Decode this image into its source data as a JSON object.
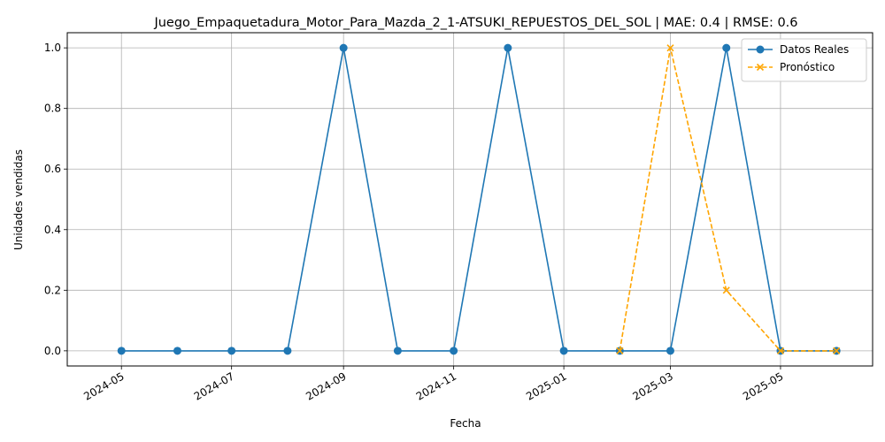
{
  "chart_data": {
    "type": "line",
    "title": "Juego_Empaquetadura_Motor_Para_Mazda_2_1-ATSUKI_REPUESTOS_DEL_SOL | MAE: 0.4 | RMSE: 0.6",
    "xlabel": "Fecha",
    "ylabel": "Unidades vendidas",
    "x_ticks": [
      "2024-05",
      "2024-07",
      "2024-09",
      "2024-11",
      "2025-01",
      "2025-03",
      "2025-05"
    ],
    "y_ticks": [
      "0.0",
      "0.2",
      "0.4",
      "0.6",
      "0.8",
      "1.0"
    ],
    "ylim": [
      -0.05,
      1.05
    ],
    "xlim": [
      "2024-04-01",
      "2025-06-21"
    ],
    "grid": true,
    "legend_position": "top-right",
    "series": [
      {
        "name": "Datos Reales",
        "color": "#1f77b4",
        "line_style": "solid",
        "marker": "circle",
        "x": [
          "2024-05-01",
          "2024-06-01",
          "2024-07-01",
          "2024-08-01",
          "2024-09-01",
          "2024-10-01",
          "2024-11-01",
          "2024-12-01",
          "2025-01-01",
          "2025-02-01",
          "2025-03-01",
          "2025-04-01",
          "2025-05-01",
          "2025-06-01"
        ],
        "values": [
          0,
          0,
          0,
          0,
          1,
          0,
          0,
          1,
          0,
          0,
          0,
          1,
          0,
          0
        ]
      },
      {
        "name": "Pronóstico",
        "color": "#ffa500",
        "line_style": "dashed",
        "marker": "x",
        "x": [
          "2025-02-01",
          "2025-03-01",
          "2025-04-01",
          "2025-05-01",
          "2025-06-01"
        ],
        "values": [
          0,
          1,
          0.2,
          0,
          0
        ]
      }
    ]
  }
}
